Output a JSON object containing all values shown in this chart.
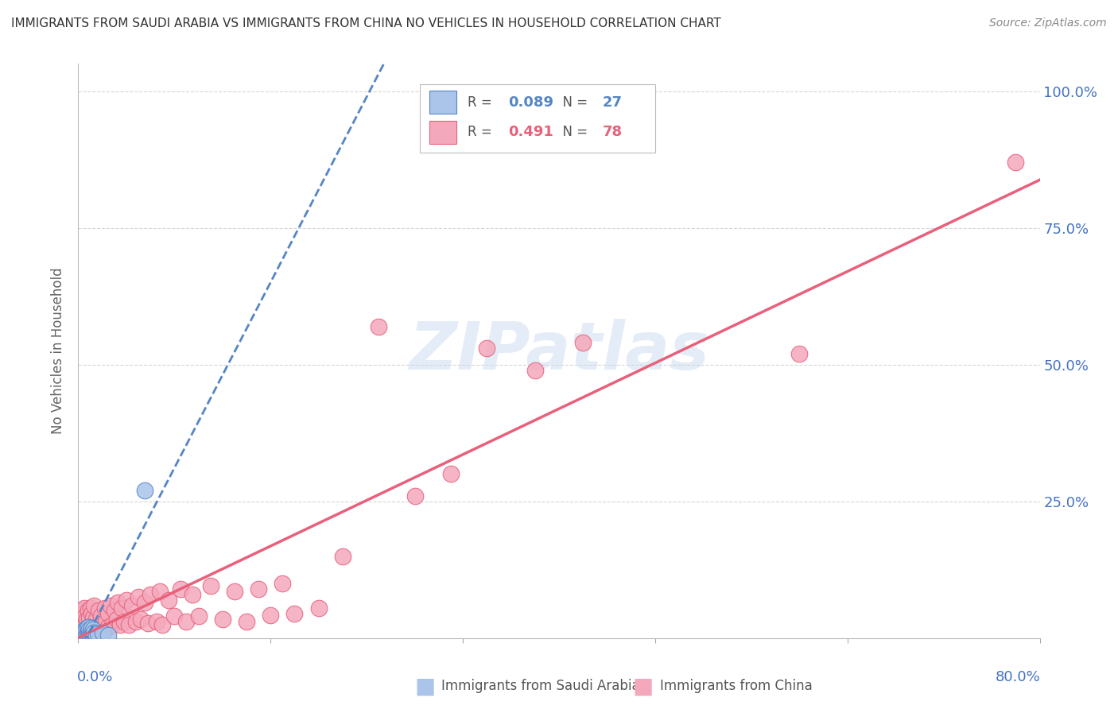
{
  "title": "IMMIGRANTS FROM SAUDI ARABIA VS IMMIGRANTS FROM CHINA NO VEHICLES IN HOUSEHOLD CORRELATION CHART",
  "source": "Source: ZipAtlas.com",
  "ylabel": "No Vehicles in Household",
  "watermark": "ZIPatlas",
  "legend_sa_R": "0.089",
  "legend_sa_N": "27",
  "legend_cn_R": "0.491",
  "legend_cn_N": "78",
  "sa_color": "#aac4ea",
  "cn_color": "#f4a8bc",
  "sa_line_color": "#5585c5",
  "cn_line_color": "#e8607a",
  "axis_label_color": "#4472c4",
  "grid_color": "#cccccc",
  "sa_x": [
    0.002,
    0.003,
    0.004,
    0.004,
    0.005,
    0.005,
    0.006,
    0.006,
    0.007,
    0.007,
    0.008,
    0.008,
    0.008,
    0.009,
    0.009,
    0.01,
    0.01,
    0.011,
    0.011,
    0.012,
    0.012,
    0.013,
    0.015,
    0.016,
    0.02,
    0.025,
    0.055
  ],
  "sa_y": [
    0.005,
    0.008,
    0.003,
    0.012,
    0.004,
    0.01,
    0.006,
    0.015,
    0.005,
    0.018,
    0.003,
    0.01,
    0.02,
    0.007,
    0.015,
    0.005,
    0.012,
    0.008,
    0.018,
    0.006,
    0.015,
    0.01,
    0.005,
    0.008,
    0.01,
    0.006,
    0.27
  ],
  "cn_x": [
    0.002,
    0.003,
    0.003,
    0.004,
    0.004,
    0.005,
    0.005,
    0.006,
    0.006,
    0.007,
    0.007,
    0.008,
    0.008,
    0.009,
    0.009,
    0.01,
    0.01,
    0.011,
    0.011,
    0.012,
    0.012,
    0.013,
    0.013,
    0.015,
    0.015,
    0.016,
    0.017,
    0.018,
    0.019,
    0.02,
    0.022,
    0.023,
    0.025,
    0.025,
    0.027,
    0.028,
    0.03,
    0.032,
    0.033,
    0.035,
    0.036,
    0.038,
    0.04,
    0.042,
    0.045,
    0.048,
    0.05,
    0.052,
    0.055,
    0.058,
    0.06,
    0.065,
    0.068,
    0.07,
    0.075,
    0.08,
    0.085,
    0.09,
    0.095,
    0.1,
    0.11,
    0.12,
    0.13,
    0.14,
    0.15,
    0.16,
    0.17,
    0.18,
    0.2,
    0.22,
    0.25,
    0.28,
    0.31,
    0.34,
    0.38,
    0.42,
    0.6,
    0.78
  ],
  "cn_y": [
    0.02,
    0.05,
    0.01,
    0.045,
    0.008,
    0.02,
    0.055,
    0.015,
    0.04,
    0.012,
    0.035,
    0.018,
    0.05,
    0.01,
    0.038,
    0.015,
    0.055,
    0.025,
    0.045,
    0.012,
    0.038,
    0.02,
    0.06,
    0.015,
    0.035,
    0.022,
    0.05,
    0.018,
    0.04,
    0.015,
    0.055,
    0.03,
    0.045,
    0.02,
    0.06,
    0.025,
    0.05,
    0.035,
    0.065,
    0.025,
    0.055,
    0.03,
    0.07,
    0.025,
    0.06,
    0.03,
    0.075,
    0.035,
    0.065,
    0.028,
    0.08,
    0.03,
    0.085,
    0.025,
    0.07,
    0.04,
    0.09,
    0.03,
    0.08,
    0.04,
    0.095,
    0.035,
    0.085,
    0.03,
    0.09,
    0.042,
    0.1,
    0.045,
    0.055,
    0.15,
    0.57,
    0.26,
    0.3,
    0.53,
    0.49,
    0.54,
    0.52,
    0.87
  ],
  "xlim": [
    0.0,
    0.8
  ],
  "ylim": [
    0.0,
    1.05
  ],
  "x_ticks": [
    0.0,
    0.16,
    0.32,
    0.48,
    0.64,
    0.8
  ],
  "y_ticks": [
    0.0,
    0.25,
    0.5,
    0.75,
    1.0
  ],
  "y_tick_labels_right": [
    "",
    "25.0%",
    "50.0%",
    "75.0%",
    "100.0%"
  ]
}
